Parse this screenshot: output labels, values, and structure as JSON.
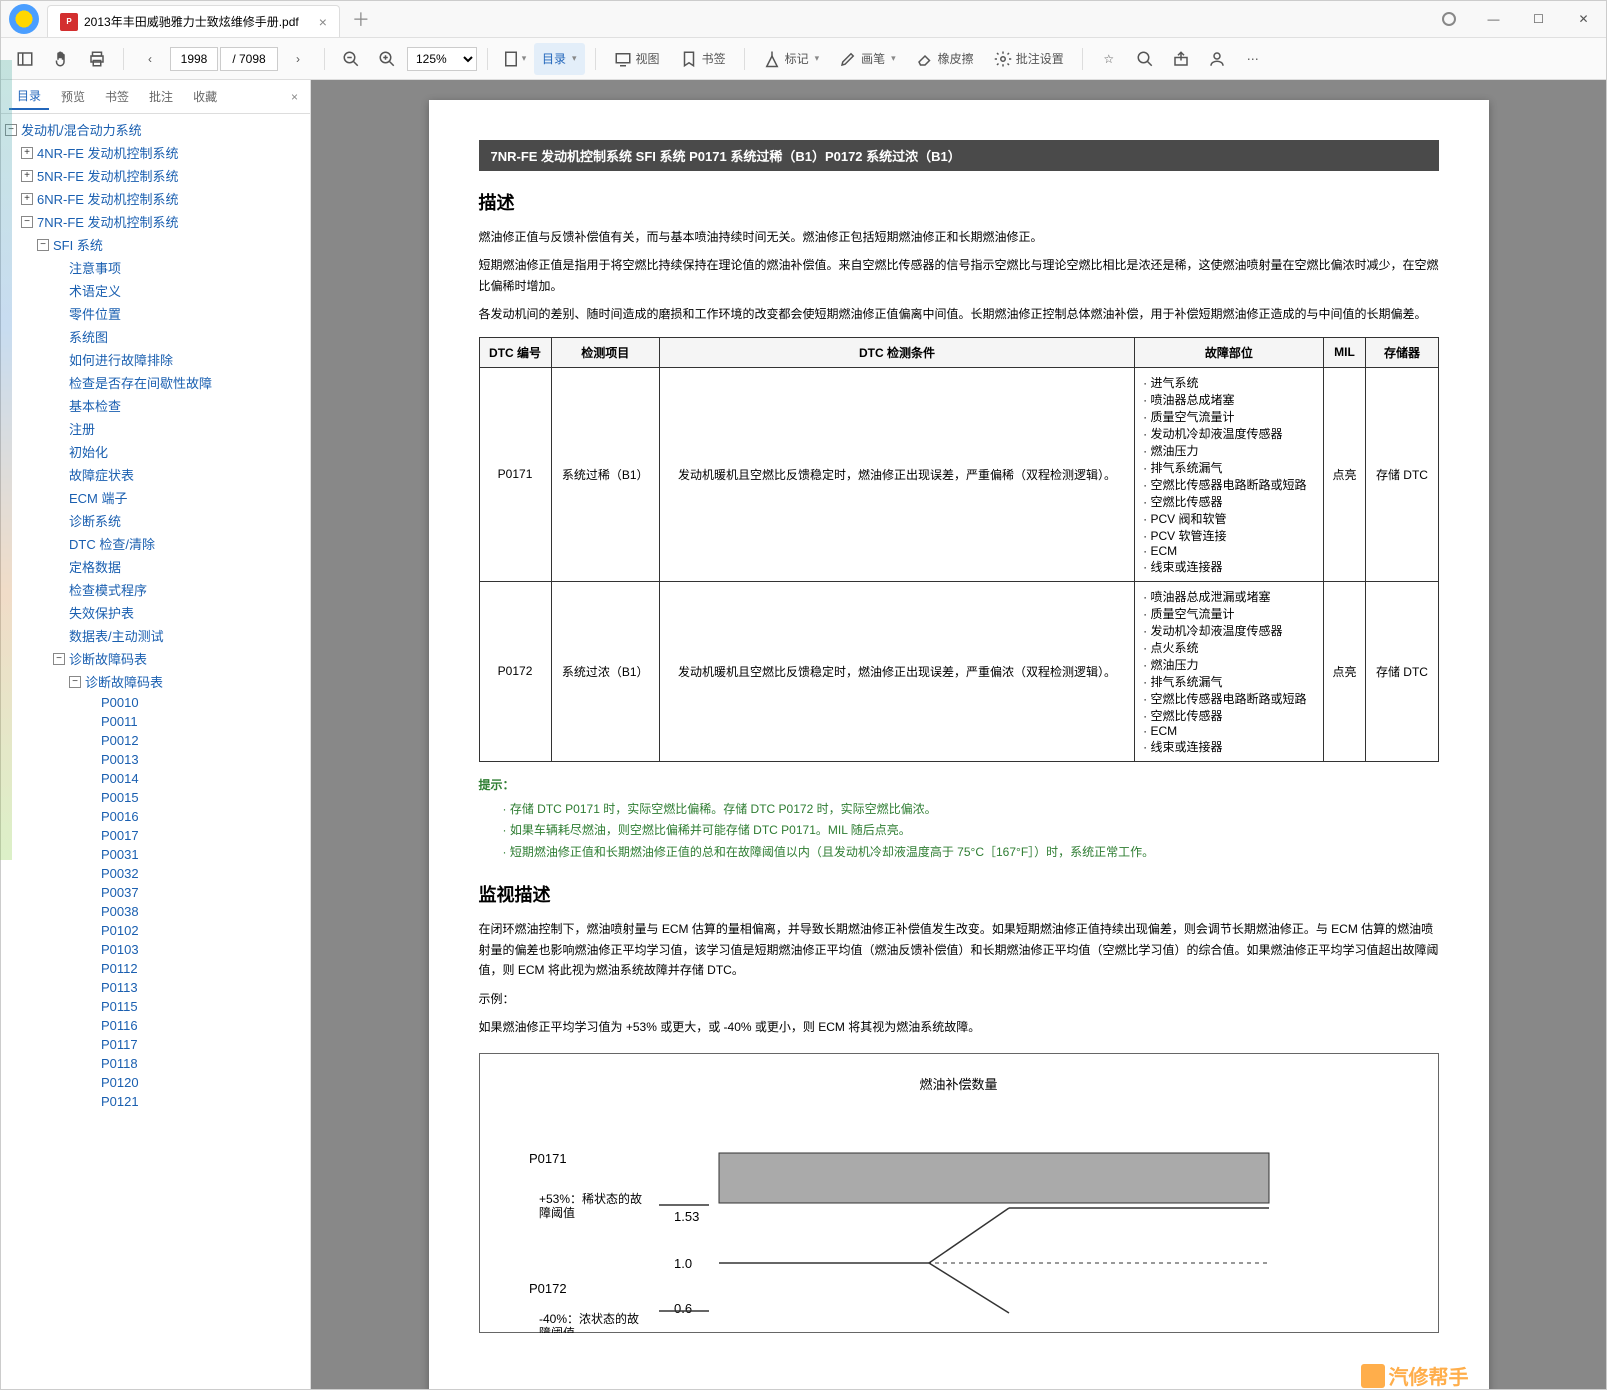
{
  "tab": {
    "title": "2013年丰田威驰雅力士致炫维修手册.pdf"
  },
  "toolbar": {
    "page_current": "1998",
    "page_total": "/ 7098",
    "zoom": "125%",
    "catalog": "目录",
    "view": "视图",
    "bookmark": "书签",
    "mark": "标记",
    "brush": "画笔",
    "eraser": "橡皮擦",
    "batch": "批注设置"
  },
  "sidebar": {
    "tabs": [
      "目录",
      "预览",
      "书签",
      "批注",
      "收藏"
    ],
    "tree": {
      "root": "发动机/混合动力系统",
      "n4": "4NR-FE 发动机控制系统",
      "n5": "5NR-FE 发动机控制系统",
      "n6": "6NR-FE 发动机控制系统",
      "n7": "7NR-FE 发动机控制系统",
      "sfi": "SFI 系统",
      "items": [
        "注意事项",
        "术语定义",
        "零件位置",
        "系统图",
        "如何进行故障排除",
        "检查是否存在间歇性故障",
        "基本检查",
        "注册",
        "初始化",
        "故障症状表",
        "ECM 端子",
        "诊断系统",
        "DTC 检查/清除",
        "定格数据",
        "检查模式程序",
        "失效保护表",
        "数据表/主动测试"
      ],
      "diag_table": "诊断故障码表",
      "diag_table2": "诊断故障码表",
      "codes": [
        "P0010",
        "P0011",
        "P0012",
        "P0013",
        "P0014",
        "P0015",
        "P0016",
        "P0017",
        "P0031",
        "P0032",
        "P0037",
        "P0038",
        "P0102",
        "P0103",
        "P0112",
        "P0113",
        "P0115",
        "P0116",
        "P0117",
        "P0118",
        "P0120",
        "P0121"
      ]
    }
  },
  "doc": {
    "header": "7NR-FE  发动机控制系统   SFI 系统   P0171  系统过稀（B1）P0172  系统过浓（B1）",
    "desc_title": "描述",
    "desc_p1": "燃油修正值与反馈补偿值有关，而与基本喷油持续时间无关。燃油修正包括短期燃油修正和长期燃油修正。",
    "desc_p2": "短期燃油修正值是指用于将空燃比持续保持在理论值的燃油补偿值。来自空燃比传感器的信号指示空燃比与理论空燃比相比是浓还是稀，这使燃油喷射量在空燃比偏浓时减少，在空燃比偏稀时增加。",
    "desc_p3": "各发动机间的差别、随时间造成的磨损和工作环境的改变都会使短期燃油修正值偏离中间值。长期燃油修正控制总体燃油补偿，用于补偿短期燃油修正造成的与中间值的长期偏差。",
    "table": {
      "cols": [
        "DTC 编号",
        "检测项目",
        "DTC 检测条件",
        "故障部位",
        "MIL",
        "存储器"
      ],
      "r1": {
        "code": "P0171",
        "item": "系统过稀（B1）",
        "cond": "发动机暖机且空燃比反馈稳定时，燃油修正出现误差，严重偏稀（双程检测逻辑）。",
        "faults": [
          "进气系统",
          "喷油器总成堵塞",
          "质量空气流量计",
          "发动机冷却液温度传感器",
          "燃油压力",
          "排气系统漏气",
          "空燃比传感器电路断路或短路",
          "空燃比传感器",
          "PCV 阀和软管",
          "PCV 软管连接",
          "ECM",
          "线束或连接器"
        ],
        "mil": "点亮",
        "store": "存储 DTC"
      },
      "r2": {
        "code": "P0172",
        "item": "系统过浓（B1）",
        "cond": "发动机暖机且空燃比反馈稳定时，燃油修正出现误差，严重偏浓（双程检测逻辑）。",
        "faults": [
          "喷油器总成泄漏或堵塞",
          "质量空气流量计",
          "发动机冷却液温度传感器",
          "点火系统",
          "燃油压力",
          "排气系统漏气",
          "空燃比传感器电路断路或短路",
          "空燃比传感器",
          "ECM",
          "线束或连接器"
        ],
        "mil": "点亮",
        "store": "存储 DTC"
      }
    },
    "hint_title": "提示：",
    "hints": [
      "存储 DTC P0171 时，实际空燃比偏稀。存储 DTC P0172 时，实际空燃比偏浓。",
      "如果车辆耗尽燃油，则空燃比偏稀并可能存储 DTC P0171。MIL 随后点亮。",
      "短期燃油修正值和长期燃油修正值的总和在故障阈值以内（且发动机冷却液温度高于 75°C［167°F］）时，系统正常工作。"
    ],
    "mon_title": "监视描述",
    "mon_p1": "在闭环燃油控制下，燃油喷射量与 ECM 估算的量相偏离，并导致长期燃油修正补偿值发生改变。如果短期燃油修正值持续出现偏差，则会调节长期燃油修正。与 ECM 估算的燃油喷射量的偏差也影响燃油修正平均学习值，该学习值是短期燃油修正平均值（燃油反馈补偿值）和长期燃油修正平均值（空燃比学习值）的综合值。如果燃油修正平均学习值超出故障阈值，则 ECM 将此视为燃油系统故障并存储 DTC。",
    "mon_p2": "示例：",
    "mon_p3": "如果燃油修正平均学习值为 +53% 或更大，或 -40% 或更小，则 ECM 将其视为燃油系统故障。",
    "diagram": {
      "title": "燃油补偿数量",
      "p0171": "P0171",
      "p0172": "P0172",
      "thresh_hi": "+53%：稀状态的故障阈值",
      "thresh_lo": "-40%：浓状态的故障阈值",
      "v153": "1.53",
      "v10": "1.0",
      "v06": "0.6"
    },
    "watermark": "汽修帮手"
  }
}
